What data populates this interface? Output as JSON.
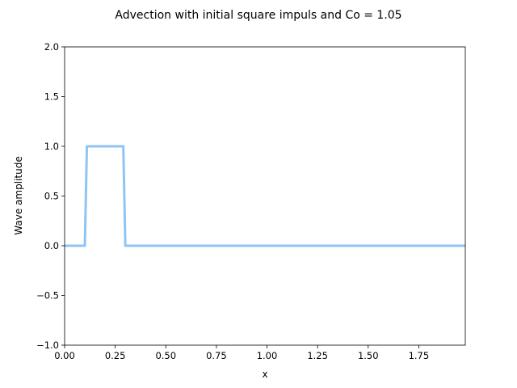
{
  "chart_data": {
    "type": "line",
    "title": "Advection with initial square impuls and Co = 1.05",
    "xlabel": "x",
    "ylabel": "Wave amplitude",
    "xlim": [
      0.0,
      1.98
    ],
    "ylim": [
      -1.0,
      2.0
    ],
    "grid": false,
    "x_ticks": [
      0.0,
      0.25,
      0.5,
      0.75,
      1.0,
      1.25,
      1.5,
      1.75
    ],
    "x_tick_labels": [
      "0.00",
      "0.25",
      "0.50",
      "0.75",
      "1.00",
      "1.25",
      "1.50",
      "1.75"
    ],
    "y_ticks": [
      -1.0,
      -0.5,
      0.0,
      0.5,
      1.0,
      1.5,
      2.0
    ],
    "y_tick_labels": [
      "−1.0",
      "−0.5",
      "0.0",
      "0.5",
      "1.0",
      "1.5",
      "2.0"
    ],
    "series": [
      {
        "color": "#90c4f4",
        "x": [
          0.0,
          0.1,
          0.11,
          0.29,
          0.3,
          1.98
        ],
        "y": [
          0.0,
          0.0,
          1.0,
          1.0,
          0.0,
          0.0
        ]
      }
    ]
  }
}
